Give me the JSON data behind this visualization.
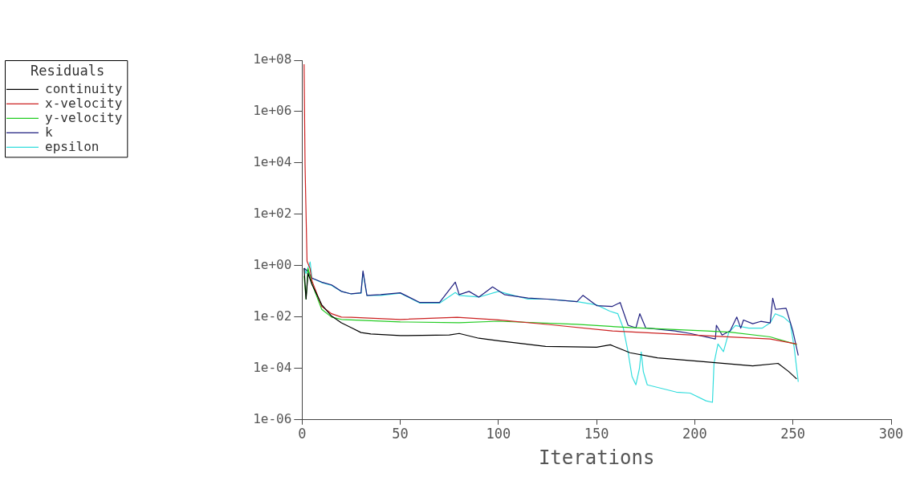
{
  "chart_data": {
    "type": "line",
    "xlabel": "Iterations",
    "legend_title": "Residuals",
    "legend": "top left",
    "log": "y",
    "xlim": [
      0,
      300
    ],
    "xticks": [
      0,
      50,
      100,
      150,
      200,
      250,
      300
    ],
    "ylim": [
      1e-06,
      100000000.0
    ],
    "yticks": [
      {
        "value": 100000000.0,
        "label": "1e+08"
      },
      {
        "value": 1000000.0,
        "label": "1e+06"
      },
      {
        "value": 10000.0,
        "label": "1e+04"
      },
      {
        "value": 100,
        "label": "1e+02"
      },
      {
        "value": 1,
        "label": "1e+00"
      },
      {
        "value": 0.01,
        "label": "1e-02"
      },
      {
        "value": 0.0001,
        "label": "1e-04"
      },
      {
        "value": 1e-06,
        "label": "1e-06"
      }
    ],
    "series": [
      {
        "name": "continuity",
        "color": "#000000",
        "x": [
          1,
          2,
          3,
          5,
          10,
          15,
          20,
          25,
          30,
          35,
          50,
          75,
          80,
          90,
          100,
          124,
          150,
          157,
          167,
          181,
          202,
          229.5,
          242.4,
          247.8,
          251.9
        ],
        "values": [
          0.8,
          0.05,
          0.5,
          0.19,
          0.03,
          0.011,
          0.006,
          0.0039,
          0.0025,
          0.0022,
          0.0019,
          0.002,
          0.0023,
          0.0015,
          0.0012,
          0.00072,
          0.00067,
          0.00083,
          0.00041,
          0.00026,
          0.00019,
          0.000126,
          0.000158,
          7.6e-05,
          3.9e-05
        ]
      },
      {
        "name": "x-velocity",
        "color": "#cc2222",
        "x": [
          1,
          1.5,
          2.5,
          4,
          5,
          10,
          15,
          20,
          25,
          50,
          79,
          100,
          127,
          158,
          198,
          238.4,
          251.9
        ],
        "values": [
          70000000.0,
          8000,
          1.5,
          0.8,
          0.26,
          0.026,
          0.0135,
          0.01,
          0.0098,
          0.0081,
          0.0098,
          0.0078,
          0.005,
          0.0029,
          0.002,
          0.0014,
          0.0009
        ]
      },
      {
        "name": "y-velocity",
        "color": "#22cc22",
        "x": [
          1,
          2,
          3,
          5,
          10,
          15,
          20,
          25,
          50,
          80,
          100,
          140,
          167,
          206,
          218,
          238.4,
          252
        ],
        "values": [
          0.4,
          0.05,
          0.8,
          0.2,
          0.02,
          0.01,
          0.0081,
          0.0078,
          0.0065,
          0.006,
          0.0069,
          0.0052,
          0.0039,
          0.0029,
          0.0026,
          0.0017,
          0.00085
        ]
      },
      {
        "name": "k",
        "color": "#202080",
        "x": [
          1,
          3,
          4.9,
          10,
          15,
          20,
          25,
          30,
          31,
          33,
          40,
          50,
          60,
          70,
          78,
          80,
          85,
          90,
          97,
          103,
          115,
          125,
          140,
          143,
          150,
          158,
          162,
          166,
          170,
          172,
          175,
          190,
          197.6,
          210.5,
          211,
          213.9,
          218,
          221.4,
          223.4,
          224.8,
          229.5,
          233.6,
          238.4,
          239.7,
          241.1,
          246.5,
          249.9,
          252.7
        ],
        "values": [
          0.8,
          0.6,
          0.33,
          0.23,
          0.18,
          0.1,
          0.08,
          0.088,
          0.63,
          0.07,
          0.075,
          0.088,
          0.037,
          0.037,
          0.23,
          0.075,
          0.1,
          0.06,
          0.15,
          0.075,
          0.055,
          0.05,
          0.04,
          0.07,
          0.028,
          0.026,
          0.037,
          0.0048,
          0.0038,
          0.0135,
          0.0038,
          0.0029,
          0.0023,
          0.0014,
          0.0048,
          0.002,
          0.0029,
          0.01,
          0.0037,
          0.0077,
          0.0055,
          0.0068,
          0.0059,
          0.054,
          0.02,
          0.022,
          0.003,
          0.00032
        ]
      },
      {
        "name": "epsilon",
        "color": "#33dddd",
        "x": [
          1,
          2,
          4.1,
          5,
          10,
          15,
          20,
          25,
          30,
          31,
          33,
          40,
          50,
          60,
          70,
          78,
          80,
          90,
          100,
          115,
          125,
          140,
          150,
          156.7,
          160.8,
          163.6,
          166,
          168,
          170,
          171.8,
          172.7,
          173.8,
          175.8,
          190.6,
          197.6,
          205.7,
          209,
          209.8,
          211.8,
          214.6,
          217.3,
          220.7,
          227.5,
          234.3,
          238.4,
          241,
          245.2,
          248.6,
          250.6,
          252.7
        ],
        "values": [
          0.8,
          0.5,
          1.4,
          0.33,
          0.22,
          0.17,
          0.1,
          0.08,
          0.085,
          0.55,
          0.07,
          0.07,
          0.085,
          0.035,
          0.035,
          0.09,
          0.07,
          0.06,
          0.1,
          0.05,
          0.05,
          0.04,
          0.03,
          0.017,
          0.0135,
          0.0037,
          0.00044,
          4.9e-05,
          2.3e-05,
          0.0001,
          0.00044,
          7.5e-05,
          2.3e-05,
          1.2e-05,
          1.1e-05,
          5.5e-06,
          4.8e-06,
          0.00016,
          0.0009,
          0.00045,
          0.0025,
          0.0047,
          0.0037,
          0.0037,
          0.006,
          0.0135,
          0.01,
          0.006,
          0.00067,
          3e-05
        ]
      }
    ]
  }
}
